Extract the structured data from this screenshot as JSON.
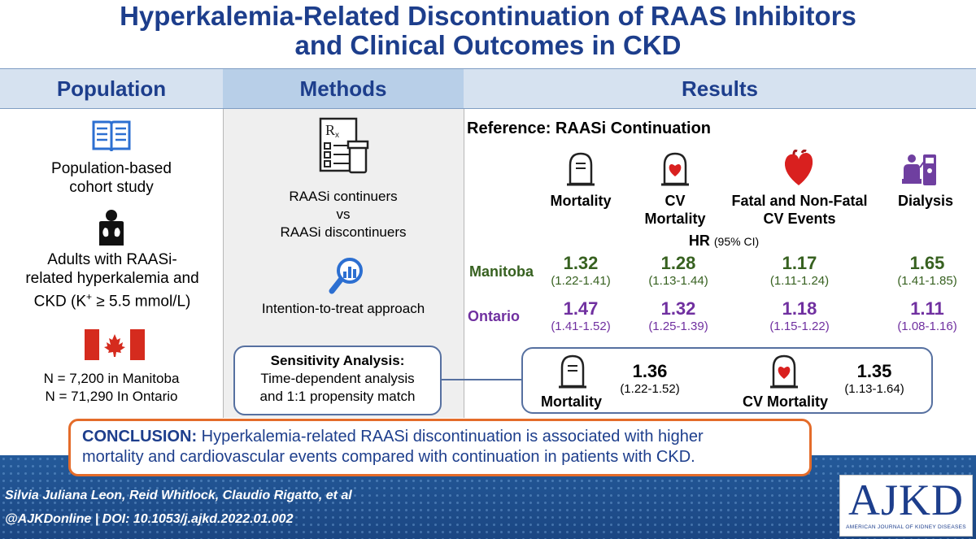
{
  "title": {
    "line1": "Hyperkalemia-Related Discontinuation of RAAS Inhibitors",
    "line2": "and Clinical Outcomes in CKD"
  },
  "headers": {
    "population": "Population",
    "methods": "Methods",
    "results": "Results"
  },
  "population": {
    "study_line1": "Population-based",
    "study_line2": "cohort study",
    "adults_line1": "Adults with RAASi-",
    "adults_line2": "related hyperkalemia and",
    "adults_line3": "CKD (K",
    "adults_sup": "+",
    "adults_line3b": " ≥ 5.5 mmol/L)",
    "n_manitoba": "N = 7,200 in Manitoba",
    "n_ontario": "N = 71,290 In Ontario"
  },
  "methods": {
    "line1": "RAASi continuers",
    "line2": "vs",
    "line3": "RAASi discontinuers",
    "itt": "Intention-to-treat approach"
  },
  "results": {
    "reference": "Reference: RAASi Continuation",
    "columns": {
      "mortality": "Mortality",
      "cv1": "CV",
      "cv2": "Mortality",
      "fatal1": "Fatal and Non-Fatal",
      "fatal2": "CV Events",
      "dialysis": "Dialysis"
    },
    "hr_label": "HR",
    "hr_ci": "(95% CI)",
    "rows": [
      {
        "label": "Manitoba",
        "values": [
          {
            "hr": "1.32",
            "ci": "(1.22-1.41)"
          },
          {
            "hr": "1.28",
            "ci": "(1.13-1.44)"
          },
          {
            "hr": "1.17",
            "ci": "(1.11-1.24)"
          },
          {
            "hr": "1.65",
            "ci": "(1.41-1.85)"
          }
        ]
      },
      {
        "label": "Ontario",
        "values": [
          {
            "hr": "1.47",
            "ci": "(1.41-1.52)"
          },
          {
            "hr": "1.32",
            "ci": "(1.25-1.39)"
          },
          {
            "hr": "1.18",
            "ci": "(1.15-1.22)"
          },
          {
            "hr": "1.11",
            "ci": "(1.08-1.16)"
          }
        ]
      }
    ]
  },
  "sensitivity": {
    "title": "Sensitivity Analysis:",
    "line1": "Time-dependent analysis",
    "line2": "and 1:1 propensity match",
    "mortality_label": "Mortality",
    "mortality_hr": "1.36",
    "mortality_ci": "(1.22-1.52)",
    "cv_label": "CV Mortality",
    "cv_hr": "1.35",
    "cv_ci": "(1.13-1.64)"
  },
  "conclusion": {
    "lead": "CONCLUSION:",
    "text1": " Hyperkalemia-related RAASi discontinuation is associated with higher",
    "text2": "mortality and cardiovascular events compared with continuation in patients with CKD."
  },
  "footer": {
    "authors": "Silvia Juliana Leon, Reid Whitlock, Claudio Rigatto, et al",
    "handle": "@AJKDonline | ",
    "doi": "DOI: 10.1053/j.ajkd.2022.01.002",
    "logo": "AJKD",
    "logo_sub": "AMERICAN JOURNAL OF KIDNEY DISEASES"
  },
  "colors": {
    "title_blue": "#1d3e8c",
    "manitoba_green": "#376120",
    "ontario_purple": "#7030a0",
    "conclusion_orange": "#e46c2a",
    "heart_red": "#d9201f"
  }
}
